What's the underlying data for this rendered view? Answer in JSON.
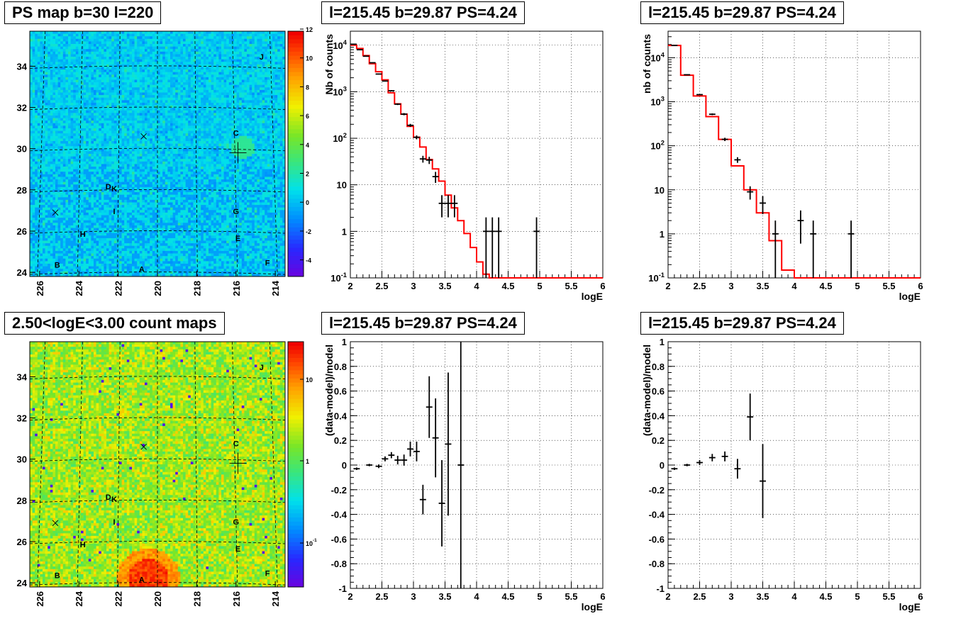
{
  "chart_data": [
    {
      "type": "heatmap",
      "title": "PS map b=30 l=220",
      "x_ticks": [
        "226",
        "224",
        "222",
        "220",
        "218",
        "216",
        "214"
      ],
      "y_ticks": [
        "24",
        "26",
        "28",
        "30",
        "32",
        "34"
      ],
      "colorbar_ticks": [
        "12",
        "10",
        "8",
        "6",
        "4",
        "2",
        "0",
        "-2",
        "-4"
      ],
      "colorbar_range": [
        -5,
        12
      ],
      "sources": [
        "A",
        "B",
        "C",
        "D",
        "E",
        "F",
        "G",
        "H",
        "I",
        "J",
        "K"
      ]
    },
    {
      "type": "heatmap",
      "title": "2.50<logE<3.00 count maps",
      "x_ticks": [
        "226",
        "224",
        "222",
        "220",
        "218",
        "216",
        "214"
      ],
      "y_ticks": [
        "24",
        "26",
        "28",
        "30",
        "32",
        "34"
      ],
      "colorbar_ticks": [
        "10",
        "1",
        "10-1"
      ],
      "colorbar_scale": "log",
      "sources": [
        "A",
        "B",
        "C",
        "D",
        "E",
        "F",
        "G",
        "H",
        "I",
        "J",
        "K"
      ]
    },
    {
      "type": "line",
      "title": "l=215.45 b=29.87 PS=4.24",
      "xlabel": "logE",
      "ylabel": "Nb of counts",
      "xlim": [
        2,
        6
      ],
      "ylim": [
        0.1,
        20000
      ],
      "yscale": "log",
      "x_ticks": [
        "2",
        "2.5",
        "3",
        "3.5",
        "4",
        "4.5",
        "5",
        "5.5",
        "6"
      ],
      "y_ticks": [
        "10-1",
        "1",
        "10",
        "102",
        "103",
        "104"
      ],
      "grid": true,
      "series": [
        {
          "style": "histogram",
          "color": "#ff0000",
          "x": [
            2.0,
            2.1,
            2.2,
            2.3,
            2.4,
            2.5,
            2.6,
            2.7,
            2.8,
            2.9,
            3.0,
            3.1,
            3.2,
            3.3,
            3.4,
            3.5,
            3.6,
            3.7,
            3.8,
            3.9,
            4.0,
            4.1,
            4.2,
            4.3,
            4.4,
            4.5,
            4.6,
            4.7,
            4.8,
            4.9,
            5.0,
            5.1,
            5.2,
            5.3,
            5.4,
            5.5,
            5.6,
            5.7,
            5.8,
            5.9
          ],
          "values": [
            10000,
            8500,
            6000,
            4000,
            2700,
            1800,
            950,
            550,
            330,
            180,
            105,
            65,
            35,
            22,
            12,
            6,
            3.2,
            1.7,
            0.9,
            0.45,
            0.22,
            0.12,
            0.1,
            0.1,
            0.1,
            0.1,
            0.1,
            0.1,
            0.1,
            0.1,
            0.1,
            0.1,
            0.1,
            0.1,
            0.1,
            0.1,
            0.1,
            0.1,
            0.1,
            0.1
          ]
        },
        {
          "style": "errorbars",
          "color": "#000000",
          "x": [
            2.05,
            2.15,
            2.25,
            2.35,
            2.45,
            2.55,
            2.65,
            2.75,
            2.85,
            2.95,
            3.05,
            3.15,
            3.25,
            3.35,
            3.45,
            3.55,
            3.65,
            4.15,
            4.25,
            4.35,
            4.95
          ],
          "values": [
            10500,
            8000,
            5800,
            4200,
            2400,
            1700,
            1050,
            540,
            330,
            190,
            105,
            36,
            34,
            15,
            4,
            4,
            4,
            1,
            1,
            1,
            1
          ],
          "err_lo": [
            100,
            90,
            80,
            65,
            50,
            40,
            32,
            23,
            18,
            14,
            10,
            6,
            6,
            4,
            2,
            2,
            2,
            1,
            1,
            1,
            1
          ],
          "err_hi": [
            100,
            90,
            80,
            65,
            50,
            40,
            32,
            23,
            18,
            14,
            10,
            6,
            6,
            4,
            2,
            2,
            2,
            1,
            1,
            1,
            1
          ]
        }
      ]
    },
    {
      "type": "line",
      "title": "l=215.45 b=29.87 PS=4.24",
      "xlabel": "logE",
      "ylabel": "nb of counts",
      "xlim": [
        2,
        6
      ],
      "ylim": [
        0.1,
        40000
      ],
      "yscale": "log",
      "x_ticks": [
        "2",
        "2.5",
        "3",
        "3.5",
        "4",
        "4.5",
        "5",
        "5.5",
        "6"
      ],
      "y_ticks": [
        "10-1",
        "1",
        "10",
        "102",
        "103",
        "104"
      ],
      "grid": true,
      "series": [
        {
          "style": "histogram",
          "color": "#ff0000",
          "x": [
            2.0,
            2.2,
            2.4,
            2.6,
            2.8,
            3.0,
            3.2,
            3.4,
            3.6,
            3.8,
            4.0,
            4.2,
            4.4,
            4.6,
            4.8,
            5.0,
            5.2,
            5.4,
            5.6,
            5.8
          ],
          "values": [
            19000,
            4000,
            1350,
            460,
            140,
            35,
            10,
            3,
            0.7,
            0.15,
            0.1,
            0.1,
            0.1,
            0.1,
            0.1,
            0.1,
            0.1,
            0.1,
            0.1,
            0.1
          ]
        },
        {
          "style": "errorbars",
          "color": "#000000",
          "x": [
            2.1,
            2.3,
            2.5,
            2.7,
            2.9,
            3.1,
            3.3,
            3.5,
            3.7,
            4.1,
            4.3,
            4.9
          ],
          "values": [
            19000,
            4100,
            1450,
            520,
            140,
            48,
            9,
            5,
            1,
            2,
            1,
            1
          ],
          "err_lo": [
            140,
            65,
            38,
            23,
            12,
            7,
            3,
            2.2,
            1,
            1.4,
            1,
            1
          ],
          "err_hi": [
            140,
            65,
            38,
            23,
            12,
            7,
            3,
            2.2,
            1,
            1.4,
            1,
            1
          ]
        }
      ]
    },
    {
      "type": "scatter",
      "title": "l=215.45 b=29.87 PS=4.24",
      "xlabel": "logE",
      "ylabel": "(data-model)/model",
      "xlim": [
        2,
        6
      ],
      "ylim": [
        -1,
        1
      ],
      "x_ticks": [
        "2",
        "2.5",
        "3",
        "3.5",
        "4",
        "4.5",
        "5",
        "5.5",
        "6"
      ],
      "y_ticks": [
        "-1",
        "-0.8",
        "-0.6",
        "-0.4",
        "-0.2",
        "0",
        "0.2",
        "0.4",
        "0.6",
        "0.8",
        "1"
      ],
      "grid": true,
      "series": [
        {
          "style": "errorbars",
          "color": "#000000",
          "x": [
            2.1,
            2.3,
            2.45,
            2.55,
            2.65,
            2.75,
            2.85,
            2.95,
            3.05,
            3.15,
            3.25,
            3.35,
            3.45,
            3.55,
            3.75
          ],
          "values": [
            -0.03,
            0.0,
            -0.01,
            0.05,
            0.08,
            0.04,
            0.04,
            0.13,
            0.11,
            -0.28,
            0.47,
            0.22,
            -0.31,
            0.17,
            0.0
          ],
          "err": [
            0.01,
            0.01,
            0.015,
            0.02,
            0.025,
            0.035,
            0.045,
            0.06,
            0.08,
            0.12,
            0.25,
            0.32,
            0.35,
            0.58,
            1.4
          ]
        }
      ]
    },
    {
      "type": "scatter",
      "title": "l=215.45 b=29.87 PS=4.24",
      "xlabel": "logE",
      "ylabel": "(data-model)/model",
      "xlim": [
        2,
        6
      ],
      "ylim": [
        -1,
        1
      ],
      "x_ticks": [
        "2",
        "2.5",
        "3",
        "3.5",
        "4",
        "4.5",
        "5",
        "5.5",
        "6"
      ],
      "y_ticks": [
        "-1",
        "-0.8",
        "-0.6",
        "-0.4",
        "-0.2",
        "0",
        "0.2",
        "0.4",
        "0.6",
        "0.8",
        "1"
      ],
      "grid": true,
      "series": [
        {
          "style": "errorbars",
          "color": "#000000",
          "x": [
            2.1,
            2.3,
            2.5,
            2.7,
            2.9,
            3.1,
            3.3,
            3.5
          ],
          "values": [
            -0.03,
            0.0,
            0.02,
            0.06,
            0.07,
            -0.03,
            0.39,
            -0.13
          ],
          "err": [
            0.01,
            0.01,
            0.02,
            0.03,
            0.04,
            0.08,
            0.19,
            0.3
          ]
        }
      ]
    }
  ]
}
